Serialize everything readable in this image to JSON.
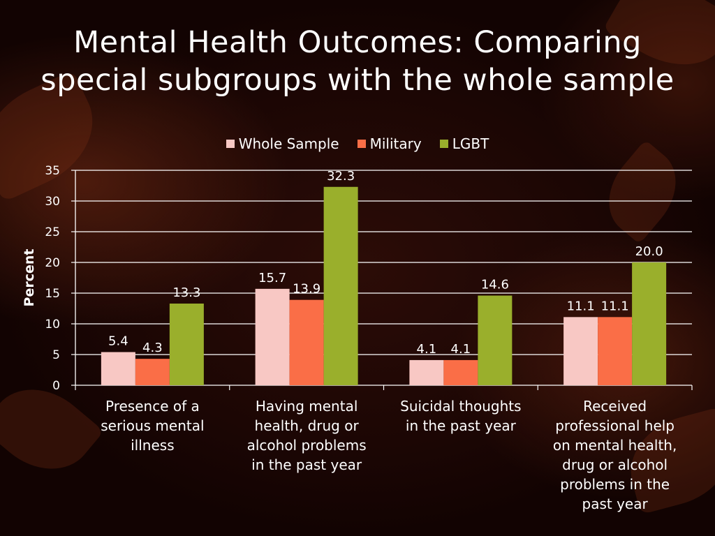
{
  "title_lines": [
    "Mental Health Outcomes: Comparing",
    "special subgroups with the whole sample"
  ],
  "colors": {
    "whole_sample": "#F8C8C4",
    "military": "#FA6E47",
    "lgbt": "#9AAF2C",
    "gridline": "#ffffff",
    "text": "#ffffff"
  },
  "chart_data": {
    "type": "bar",
    "title": "Mental Health Outcomes: Comparing special subgroups with the whole sample",
    "ylabel": "Percent",
    "xlabel": "",
    "ylim": [
      0,
      35
    ],
    "yticks": [
      0,
      5,
      10,
      15,
      20,
      25,
      30,
      35
    ],
    "grid": true,
    "legend_position": "top",
    "categories": [
      "Presence of a serious mental illness",
      "Having mental health, drug or alcohol problems in the past year",
      "Suicidal thoughts in the past year",
      "Received professional help on mental health, drug or alcohol problems in the past year"
    ],
    "category_label_lines": [
      [
        "Presence of a",
        "serious mental",
        "illness"
      ],
      [
        "Having mental",
        "health, drug or",
        "alcohol problems",
        "in the past year"
      ],
      [
        "Suicidal thoughts",
        "in the past year"
      ],
      [
        "Received",
        "professional help",
        "on mental health,",
        "drug or alcohol",
        "problems in the",
        "past year"
      ]
    ],
    "series": [
      {
        "name": "Whole Sample",
        "values": [
          5.4,
          15.7,
          4.1,
          11.1
        ],
        "labels": [
          "5.4",
          "15.7",
          "4.1",
          "11.1"
        ],
        "color": "#F8C8C4"
      },
      {
        "name": "Military",
        "values": [
          4.3,
          13.9,
          4.1,
          11.1
        ],
        "labels": [
          "4.3",
          "13.9",
          "4.1",
          "11.1"
        ],
        "color": "#FA6E47"
      },
      {
        "name": "LGBT",
        "values": [
          13.3,
          32.3,
          14.6,
          20.0
        ],
        "labels": [
          "13.3",
          "32.3",
          "14.6",
          "20.0"
        ],
        "color": "#9AAF2C"
      }
    ]
  }
}
